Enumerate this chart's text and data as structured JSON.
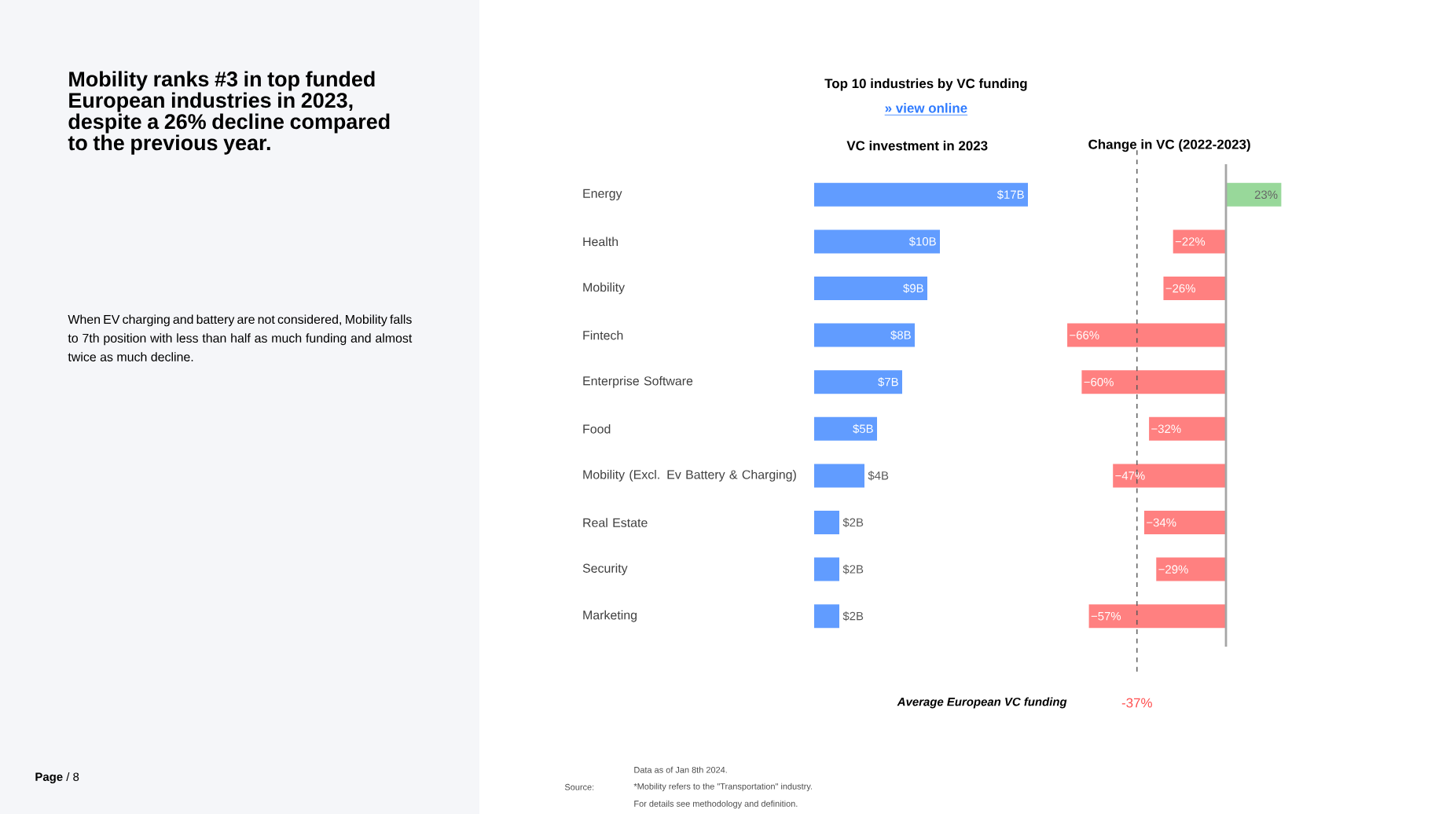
{
  "chart_data": [
    {
      "type": "other",
      "title": "Mobility ranks #3 in top funded European industries in 2023, despite a 26% decline compared to the previous year.",
      "annotations": [
        "When EV charging and battery are not considered, Mobility falls to 7th position with less than half as much funding and almost twice as much decline.",
        "**Page** / 8"
      ]
    },
    {
      "type": "bar",
      "orientation": "horizontal",
      "title": "Top 10 industries by VC funding",
      "subtitle": "» view online",
      "xlabel": "VC investment in 2023",
      "categories": [
        "Energy",
        "Health",
        "Mobility",
        "Fintech",
        "Enterprise Software",
        "Food",
        "Mobility (Excl. Ev Battery & Charging)",
        "Real Estate",
        "Security",
        "Marketing"
      ],
      "values": [
        17,
        10,
        9,
        8,
        7,
        5,
        4,
        2,
        2,
        2
      ],
      "value_labels": [
        "$17B",
        "$10B",
        "$9B",
        "$8B",
        "$7B",
        "$5B",
        "$4B",
        "$2B",
        "$2B",
        "$2B"
      ],
      "color": "#619cff",
      "annotations": [
        "Source:",
        "Data as of Jan 8th 2024.",
        "*Mobility refers to the \"Transportation\" industry.",
        "For details see methodology and definition."
      ]
    },
    {
      "type": "bar",
      "orientation": "horizontal",
      "title": "Change in VC (2022-2023)",
      "categories": [
        null,
        null,
        null,
        null,
        null,
        null,
        null,
        null,
        null,
        null
      ],
      "values": [
        23,
        -22,
        -26,
        -66,
        -60,
        -32,
        -47,
        -34,
        -29,
        -57
      ],
      "value_labels": [
        "23%",
        "−22%",
        "−26%",
        "−66%",
        "−60%",
        "−32%",
        "−47%",
        "−34%",
        "−29%",
        "−57%"
      ],
      "colors": [
        "#98d89a",
        "#ff8080",
        "#ff8080",
        "#ff8080",
        "#ff8080",
        "#ff8080",
        "#ff8080",
        "#ff8080",
        "#ff8080",
        "#ff8080"
      ],
      "ref_lines": [
        {
          "axis": "x",
          "value": -37,
          "label": "-37%",
          "color": "#555555",
          "line_style": "dashed"
        }
      ],
      "annotations": [
        "Average European VC funding"
      ]
    }
  ]
}
